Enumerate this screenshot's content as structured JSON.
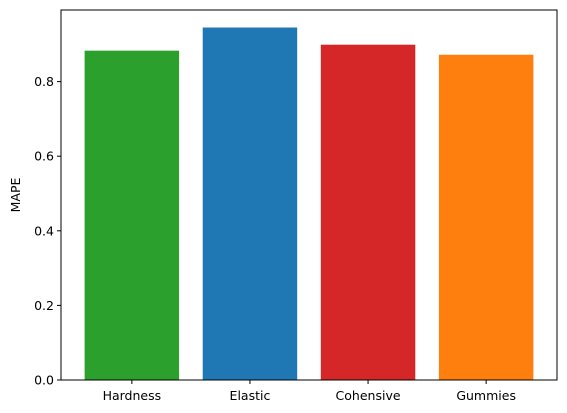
{
  "chart_data": {
    "type": "bar",
    "title": "",
    "xlabel": "",
    "ylabel": "MAPE",
    "categories": [
      "Hardness",
      "Elastic",
      "Cohensive",
      "Gummies"
    ],
    "values": [
      0.883,
      0.945,
      0.899,
      0.872
    ],
    "colors": [
      "#2ca02c",
      "#1f77b4",
      "#d62728",
      "#ff7f0e"
    ],
    "ylim": [
      0,
      0.992
    ],
    "yticks": [
      0.0,
      0.2,
      0.4,
      0.6,
      0.8
    ],
    "ytick_labels": [
      "0.0",
      "0.2",
      "0.4",
      "0.6",
      "0.8"
    ],
    "grid": false,
    "legend": "none"
  }
}
